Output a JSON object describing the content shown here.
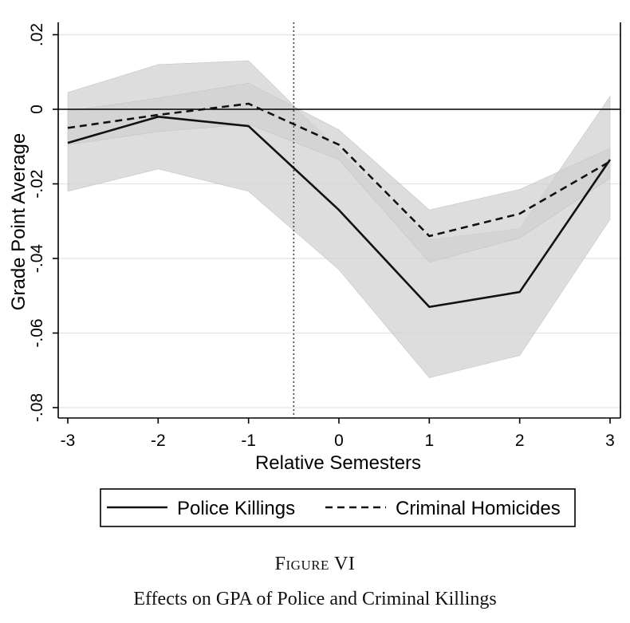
{
  "chart_data": {
    "type": "line",
    "xlabel": "Relative Semesters",
    "ylabel": "Grade Point Average",
    "x": [
      -3,
      -2,
      -1,
      0,
      1,
      2,
      3
    ],
    "x_ticks": [
      "-3",
      "-2",
      "-1",
      "0",
      "1",
      "2",
      "3"
    ],
    "y_ticks": [
      0.02,
      0,
      -0.02,
      -0.04,
      -0.06,
      -0.08
    ],
    "y_tick_labels": [
      ".02",
      "0",
      "-.02",
      "-.04",
      "-.06",
      "-.08"
    ],
    "xlim": [
      -3,
      3
    ],
    "ylim": [
      -0.082,
      0.023
    ],
    "grid": true,
    "reference_lines": {
      "y": 0,
      "x": -0.5
    },
    "series": [
      {
        "name": "Police Killings",
        "style": "solid",
        "values": [
          -0.009,
          -0.002,
          -0.0045,
          -0.027,
          -0.053,
          -0.049,
          -0.0135
        ],
        "ci_lower": [
          -0.022,
          -0.016,
          -0.022,
          -0.043,
          -0.072,
          -0.066,
          -0.0295
        ],
        "ci_upper": [
          0.0045,
          0.012,
          0.013,
          -0.011,
          -0.035,
          -0.032,
          0.0035
        ]
      },
      {
        "name": "Criminal Homicides",
        "style": "dashed",
        "values": [
          -0.005,
          -0.0015,
          0.0015,
          -0.0095,
          -0.034,
          -0.028,
          -0.014
        ],
        "ci_lower": [
          -0.0095,
          -0.006,
          -0.004,
          -0.0135,
          -0.041,
          -0.0345,
          -0.0185
        ],
        "ci_upper": [
          -0.0005,
          0.003,
          0.007,
          -0.0055,
          -0.027,
          -0.0215,
          -0.0105
        ]
      }
    ],
    "legend_position": "bottom"
  },
  "figure": {
    "label": "Figure VI",
    "caption": "Effects on GPA of Police and Criminal Killings"
  },
  "colors": {
    "ci_band": "#d0d0d0",
    "line": "#111111",
    "grid": "#e4e4e4",
    "frame": "#000000"
  }
}
